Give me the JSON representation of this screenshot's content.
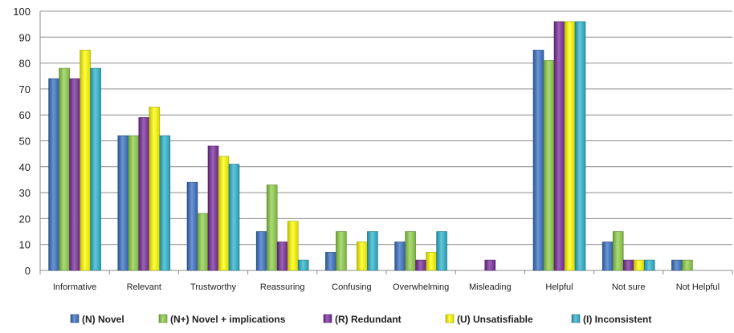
{
  "chart_data": {
    "type": "bar",
    "categories": [
      "Informative",
      "Relevant",
      "Trustworthy",
      "Reassuring",
      "Confusing",
      "Overwhelming",
      "Misleading",
      "Helpful",
      "Not sure",
      "Not Helpful"
    ],
    "series": [
      {
        "name": "(N) Novel",
        "color": "#3a72c4",
        "values": [
          74,
          52,
          34,
          15,
          7,
          11,
          0,
          85,
          11,
          4
        ]
      },
      {
        "name": "(N+) Novel + implications",
        "color": "#8fd04a",
        "values": [
          78,
          52,
          22,
          33,
          15,
          15,
          0,
          81,
          15,
          4
        ]
      },
      {
        "name": "(R) Redundant",
        "color": "#7a2e9c",
        "values": [
          74,
          59,
          48,
          11,
          0,
          4,
          4,
          96,
          4,
          0
        ]
      },
      {
        "name": "(U) Unsatisfiable",
        "color": "#ffff00",
        "values": [
          85,
          63,
          44,
          19,
          11,
          7,
          0,
          96,
          4,
          0
        ]
      },
      {
        "name": "(I) Inconsistent",
        "color": "#2fb4cf",
        "values": [
          78,
          52,
          41,
          4,
          15,
          15,
          0,
          96,
          4,
          0
        ]
      }
    ],
    "ylim": [
      0,
      100
    ],
    "yticks": [
      0,
      10,
      20,
      30,
      40,
      50,
      60,
      70,
      80,
      90,
      100
    ],
    "grid": true,
    "legend_position": "bottom"
  }
}
